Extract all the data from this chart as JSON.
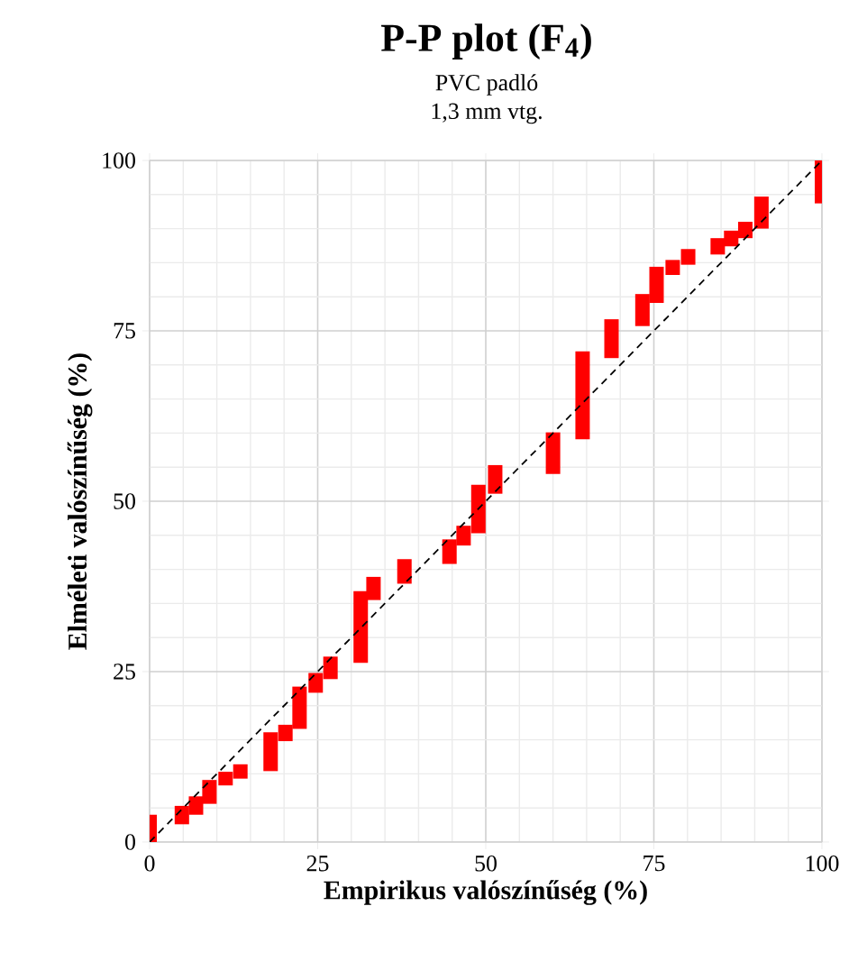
{
  "chart_data": {
    "type": "bar",
    "title": "P-P plot (F$_{4}$)",
    "subtitle": "PVC padló",
    "annotations": [
      "1,3 mm vtg."
    ],
    "xlabel": "Empirikus valószínűség (%)",
    "ylabel": "Elméleti valószínűség (%)",
    "xlim": [
      0,
      100
    ],
    "ylim": [
      0,
      100
    ],
    "xticks": [
      0,
      25,
      50,
      75,
      100
    ],
    "yticks": [
      0,
      25,
      50,
      75,
      100
    ],
    "grid": true,
    "series": [
      {
        "color": "#ff0000",
        "base": [
          0,
          2.6,
          4.0,
          5.6,
          8.3,
          9.3,
          10.4,
          14.8,
          16.6,
          21.9,
          23.9,
          26.3,
          35.5,
          37.9,
          40.8,
          43.5,
          45.3,
          51.1,
          54.0,
          59.1,
          71.0,
          75.7,
          79.1,
          83.2,
          84.7,
          86.2,
          87.4,
          88.6,
          90.0,
          93.7
        ],
        "x": [
          0,
          4.8,
          6.9,
          8.9,
          11.3,
          13.5,
          18.0,
          20.2,
          22.3,
          24.7,
          26.9,
          31.4,
          33.3,
          37.9,
          44.6,
          46.7,
          48.9,
          51.4,
          60.0,
          64.4,
          68.7,
          73.3,
          75.4,
          77.8,
          80.1,
          84.5,
          86.5,
          88.6,
          91.0,
          100
        ],
        "values": [
          4,
          2.7,
          2.7,
          3.5,
          2.0,
          2.1,
          5.7,
          2.4,
          6.2,
          2.9,
          3.3,
          10.5,
          3.4,
          3.6,
          3.6,
          2.9,
          7.1,
          4.2,
          6.1,
          12.9,
          5.7,
          4.7,
          5.3,
          2.2,
          2.3,
          2.4,
          2.3,
          2.4,
          4.7,
          6.3
        ]
      },
      {
        "type": "line",
        "color": "#000000",
        "line_style": "dashed",
        "x": [
          0,
          100
        ],
        "values": [
          0,
          100
        ]
      }
    ]
  }
}
